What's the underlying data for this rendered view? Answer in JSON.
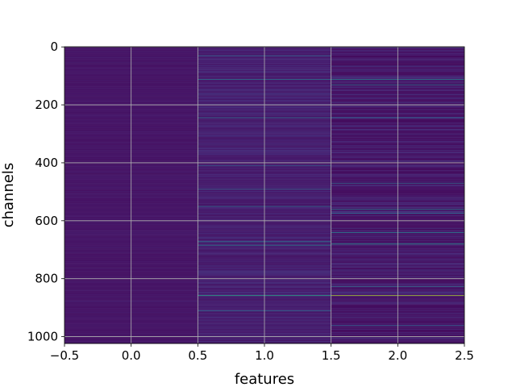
{
  "chart_data": {
    "type": "heatmap",
    "xlabel": "features",
    "ylabel": "channels",
    "xlim": [
      -0.5,
      2.5
    ],
    "ylim": [
      1023.5,
      -0.5
    ],
    "x_ticks": [
      -0.5,
      0.0,
      0.5,
      1.0,
      1.5,
      2.0,
      2.5
    ],
    "x_tick_labels": [
      "−0.5",
      "0.0",
      "0.5",
      "1.0",
      "1.5",
      "2.0",
      "2.5"
    ],
    "y_ticks": [
      0,
      200,
      400,
      600,
      800,
      1000
    ],
    "y_tick_labels": [
      "0",
      "200",
      "400",
      "600",
      "800",
      "1000"
    ],
    "grid": true,
    "colormap": "viridis",
    "colormap_stops": [
      "#440154",
      "#482878",
      "#3e4989",
      "#31688e",
      "#26828e",
      "#1f9e89",
      "#35b779",
      "#6ece58",
      "#b5de2b",
      "#fde725"
    ],
    "rows": 1024,
    "columns": [
      0,
      1,
      2
    ],
    "column_base_levels": [
      0.05,
      0.06,
      0.03
    ],
    "column_noise_levels": [
      0.025,
      0.08,
      0.12
    ],
    "highlight_rows": [
      {
        "row": 31,
        "column": 1,
        "value": 0.35
      },
      {
        "row": 112,
        "column": 1,
        "value": 0.4
      },
      {
        "row": 112,
        "column": 2,
        "value": 0.45
      },
      {
        "row": 130,
        "column": 2,
        "value": 0.4
      },
      {
        "row": 245,
        "column": 1,
        "value": 0.38
      },
      {
        "row": 245,
        "column": 2,
        "value": 0.35
      },
      {
        "row": 410,
        "column": 1,
        "value": 0.3
      },
      {
        "row": 470,
        "column": 2,
        "value": 0.35
      },
      {
        "row": 490,
        "column": 1,
        "value": 0.32
      },
      {
        "row": 550,
        "column": 1,
        "value": 0.38
      },
      {
        "row": 560,
        "column": 2,
        "value": 0.42
      },
      {
        "row": 575,
        "column": 2,
        "value": 0.35
      },
      {
        "row": 640,
        "column": 2,
        "value": 0.45
      },
      {
        "row": 672,
        "column": 1,
        "value": 0.4
      },
      {
        "row": 680,
        "column": 2,
        "value": 0.5
      },
      {
        "row": 685,
        "column": 1,
        "value": 0.45
      },
      {
        "row": 826,
        "column": 2,
        "value": 0.35
      },
      {
        "row": 858,
        "column": 1,
        "value": 0.6
      },
      {
        "row": 858,
        "column": 2,
        "value": 0.88
      },
      {
        "row": 910,
        "column": 1,
        "value": 0.35
      },
      {
        "row": 960,
        "column": 2,
        "value": 0.3
      },
      {
        "row": 1000,
        "column": 1,
        "value": 0.3
      }
    ]
  }
}
